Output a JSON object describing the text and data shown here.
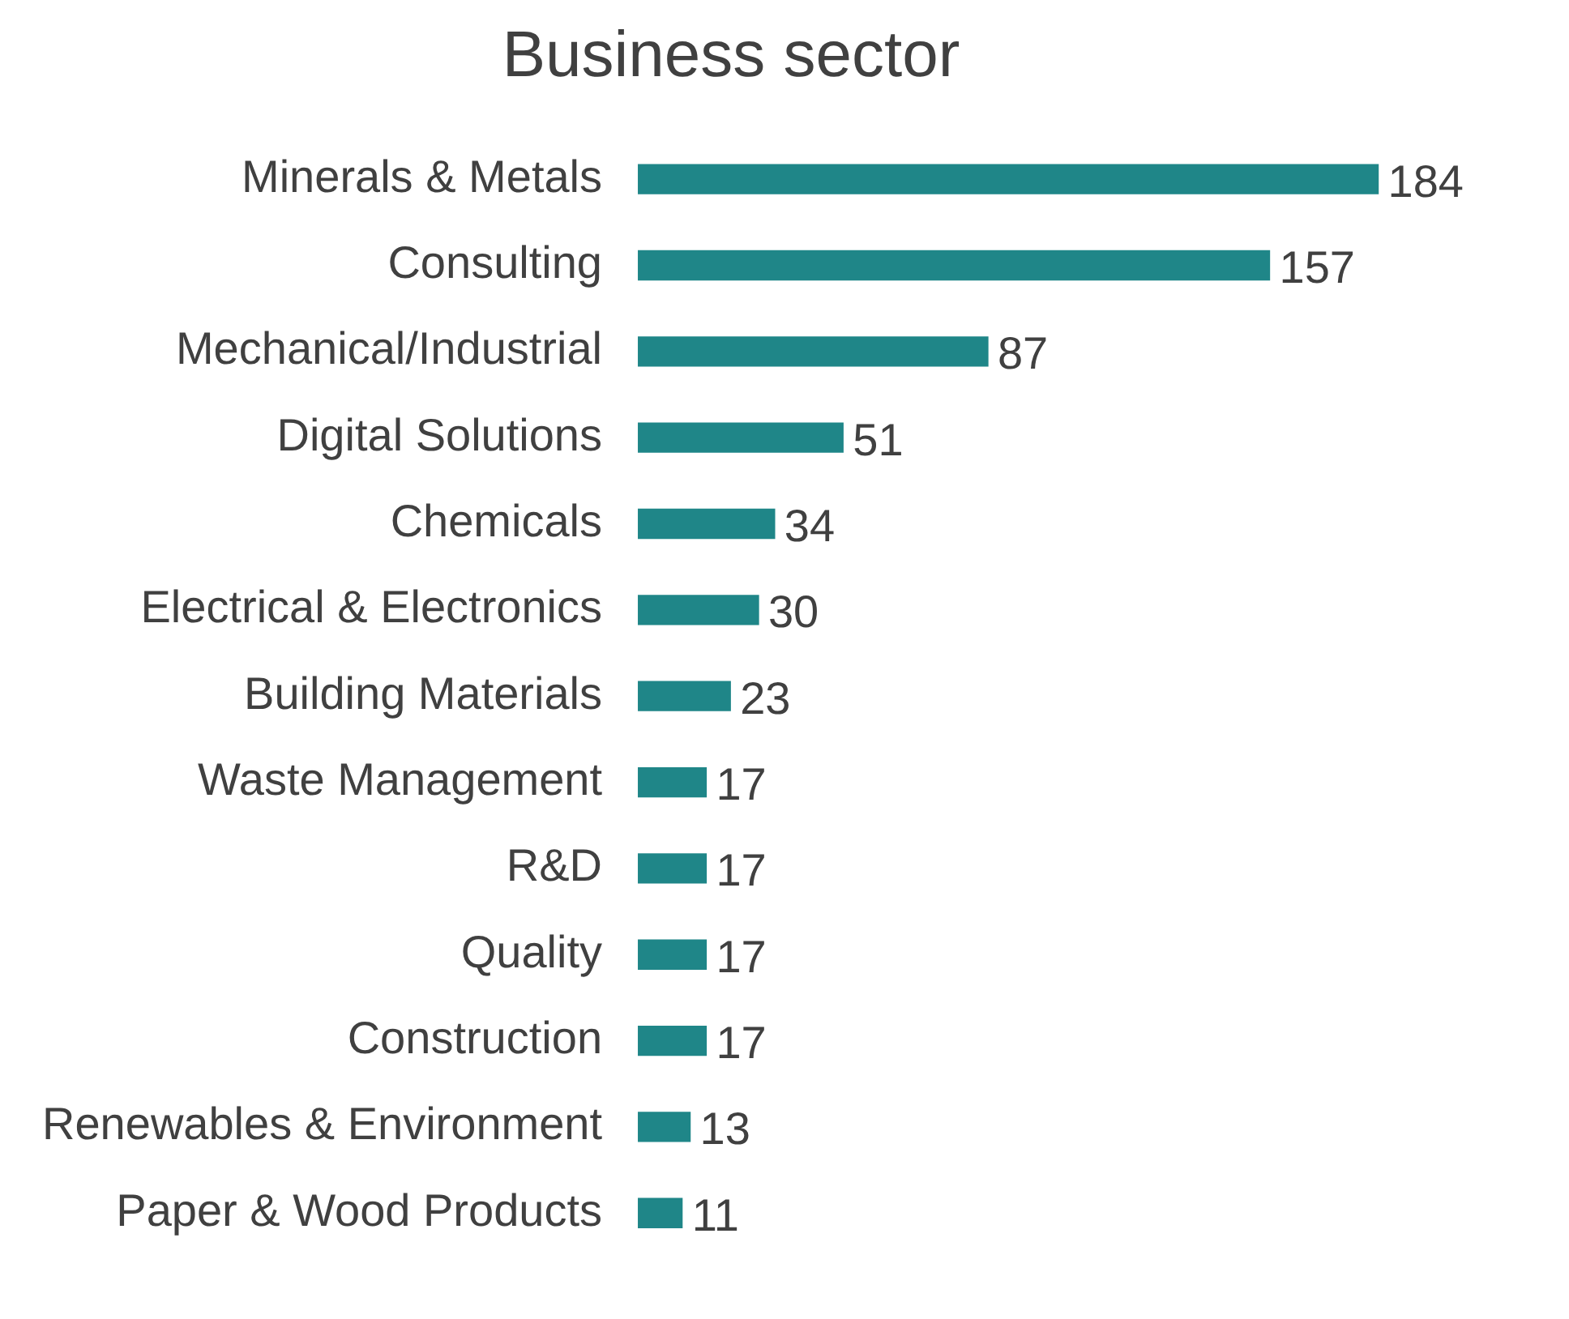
{
  "chart_data": {
    "type": "bar",
    "orientation": "horizontal",
    "title": "Business sector",
    "categories": [
      "Minerals & Metals",
      "Consulting",
      "Mechanical/Industrial",
      "Digital Solutions",
      "Chemicals",
      "Electrical & Electronics",
      "Building Materials",
      "Waste Management",
      "R&D",
      "Quality",
      "Construction",
      "Renewables & Environment",
      "Paper & Wood Products"
    ],
    "values": [
      184,
      157,
      87,
      51,
      34,
      30,
      23,
      17,
      17,
      17,
      17,
      13,
      11
    ],
    "color": "#1f8688",
    "data_labels": true,
    "legend": false
  }
}
